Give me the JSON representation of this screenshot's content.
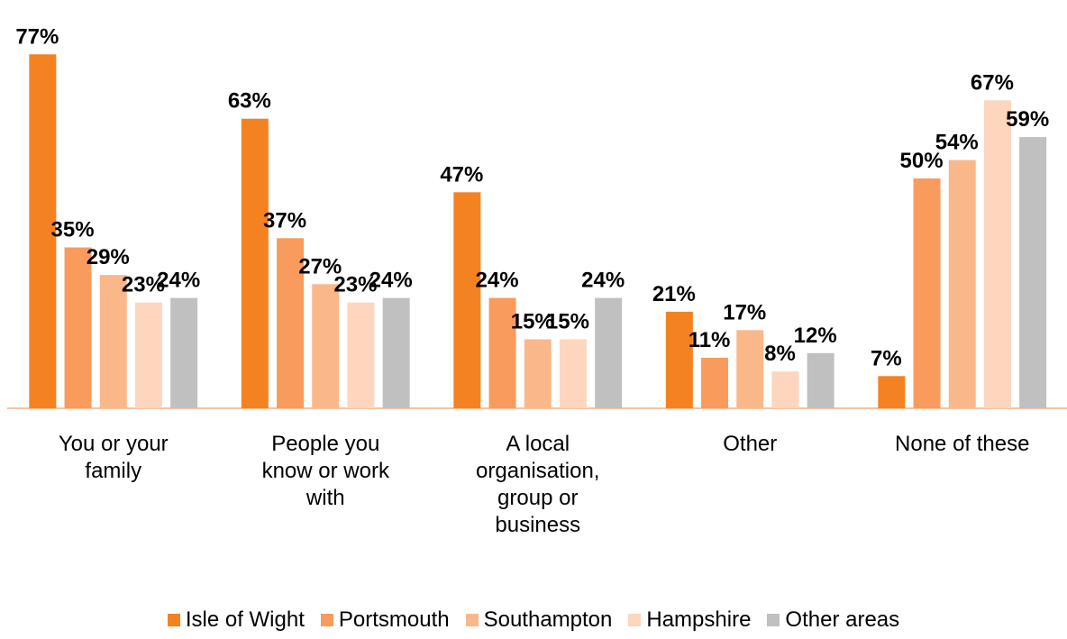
{
  "chart_data": {
    "type": "bar",
    "categories": [
      "You or your family",
      "People you know or work with",
      "A local organisation, group or business",
      "Other",
      "None of these"
    ],
    "series": [
      {
        "name": "Isle of Wight",
        "color": "#f58220",
        "values": [
          77,
          63,
          47,
          21,
          7
        ],
        "value_labels": [
          "77%",
          "63%",
          "47%",
          "21%",
          "7%"
        ]
      },
      {
        "name": "Portsmouth",
        "color": "#f89b5c",
        "values": [
          35,
          37,
          24,
          11,
          50
        ],
        "value_labels": [
          "35%",
          "37%",
          "24%",
          "11%",
          "50%"
        ]
      },
      {
        "name": "Southampton",
        "color": "#fab88a",
        "values": [
          29,
          27,
          15,
          17,
          54
        ],
        "value_labels": [
          "29%",
          "27%",
          "15%",
          "17%",
          "54%"
        ]
      },
      {
        "name": "Hampshire",
        "color": "#fdd6bd",
        "values": [
          23,
          23,
          15,
          8,
          67
        ],
        "value_labels": [
          "23%",
          "23%",
          "15%",
          "8%",
          "67%"
        ]
      },
      {
        "name": "Other areas",
        "color": "#c0c0c0",
        "values": [
          24,
          24,
          24,
          12,
          59
        ],
        "value_labels": [
          "24%",
          "24%",
          "24%",
          "12%",
          "59%"
        ]
      }
    ],
    "ylim": [
      0,
      80
    ],
    "legend": "bottom"
  }
}
